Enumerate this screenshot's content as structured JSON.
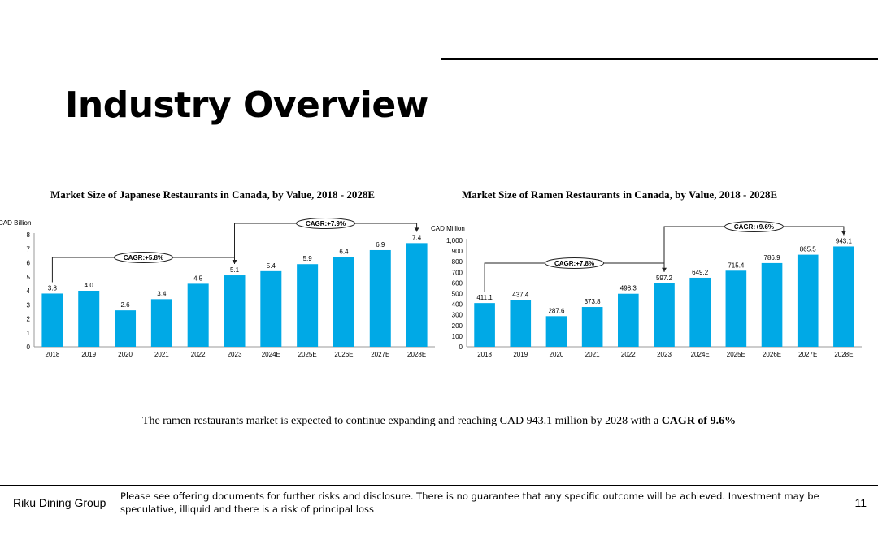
{
  "title": "Industry Overview",
  "chart_data": [
    {
      "type": "bar",
      "title": "Market Size of Japanese Restaurants in Canada, by Value, 2018 - 2028E",
      "ylabel": "CAD Billion",
      "categories": [
        "2018",
        "2019",
        "2020",
        "2021",
        "2022",
        "2023",
        "2024E",
        "2025E",
        "2026E",
        "2027E",
        "2028E"
      ],
      "values": [
        3.8,
        4.0,
        2.6,
        3.4,
        4.5,
        5.1,
        5.4,
        5.9,
        6.4,
        6.9,
        7.4
      ],
      "value_labels": [
        "3.8",
        "4.0",
        "2.6",
        "3.4",
        "4.5",
        "5.1",
        "5.4",
        "5.9",
        "6.4",
        "6.9",
        "7.4"
      ],
      "ylim": [
        0,
        8
      ],
      "yticks": [
        "0",
        "1",
        "2",
        "3",
        "4",
        "5",
        "6",
        "7",
        "8"
      ],
      "color": "#00a9e6",
      "annotations": [
        {
          "label": "CAGR:+5.8%",
          "from": 0,
          "to": 5
        },
        {
          "label": "CAGR:+7.9%",
          "from": 5,
          "to": 10
        }
      ]
    },
    {
      "type": "bar",
      "title": "Market Size of Ramen Restaurants in Canada, by Value, 2018 - 2028E",
      "ylabel": "CAD Million",
      "categories": [
        "2018",
        "2019",
        "2020",
        "2021",
        "2022",
        "2023",
        "2024E",
        "2025E",
        "2026E",
        "2027E",
        "2028E"
      ],
      "values": [
        411.1,
        437.4,
        287.6,
        373.8,
        498.3,
        597.2,
        649.2,
        715.4,
        786.9,
        865.5,
        943.1
      ],
      "value_labels": [
        "411.1",
        "437.4",
        "287.6",
        "373.8",
        "498.3",
        "597.2",
        "649.2",
        "715.4",
        "786.9",
        "865.5",
        "943.1"
      ],
      "ylim": [
        0,
        1000
      ],
      "yticks": [
        "0",
        "100",
        "200",
        "300",
        "400",
        "500",
        "600",
        "700",
        "800",
        "900",
        "1,000"
      ],
      "color": "#00a9e6",
      "annotations": [
        {
          "label": "CAGR:+7.8%",
          "from": 0,
          "to": 5
        },
        {
          "label": "CAGR:+9.6%",
          "from": 5,
          "to": 10
        }
      ]
    }
  ],
  "note": {
    "text": "The ramen restaurants market is expected to continue expanding and reaching CAD 943.1 million by 2028 with a ",
    "bold": "CAGR of 9.6%"
  },
  "footer": {
    "company": "Riku Dining Group",
    "disclaimer": "Please see offering documents for further risks and disclosure. There is no guarantee that any specific outcome will be achieved. Investment may be speculative, illiquid and there is a risk of principal loss",
    "page_number": "11"
  }
}
